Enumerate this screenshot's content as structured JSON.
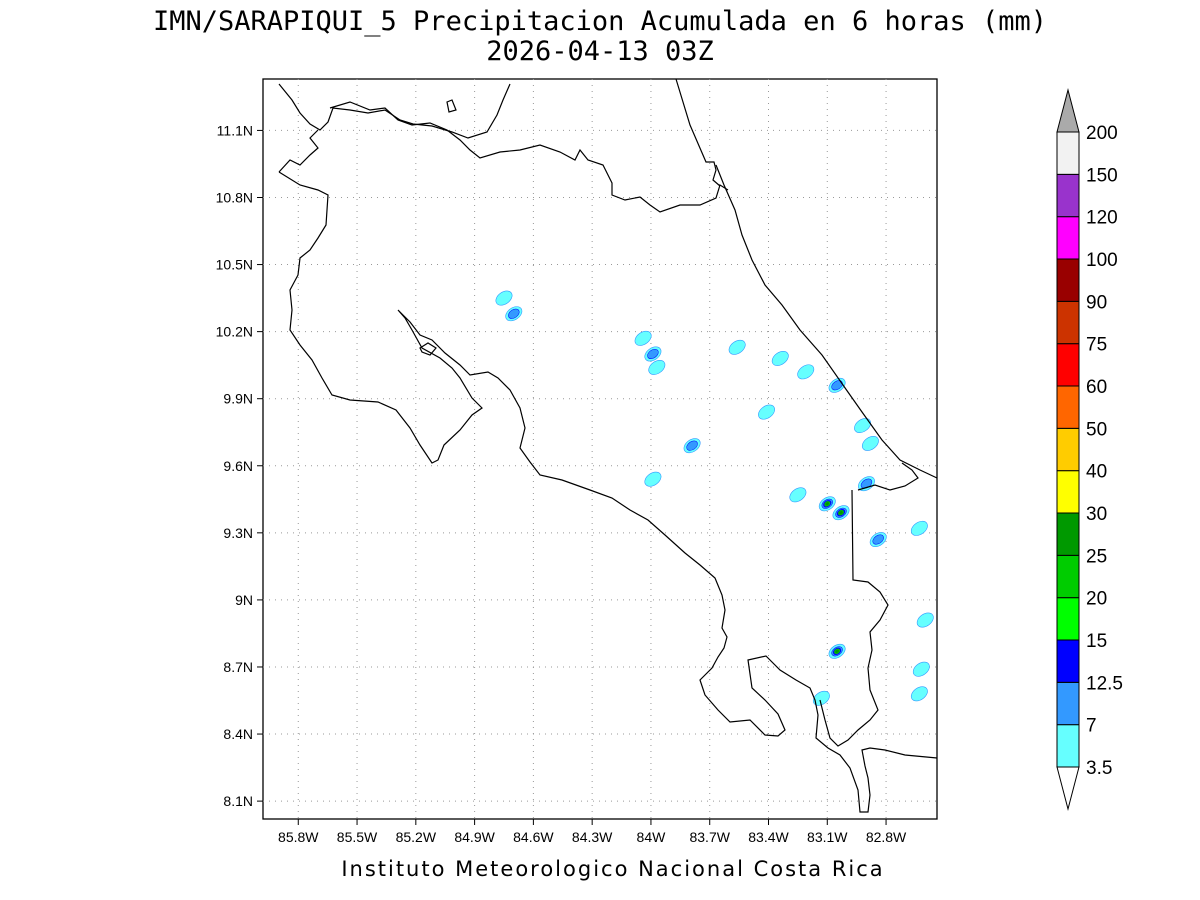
{
  "title_line1": "IMN/SARAPIQUI_5 Precipitacion Acumulada en 6 horas (mm)",
  "title_line2": "2026-04-13 03Z",
  "footer": "Instituto Meteorologico Nacional Costa Rica",
  "map": {
    "lon_range": [
      -85.98,
      -82.54
    ],
    "lat_range": [
      8.02,
      11.33
    ],
    "lon_ticks": [
      {
        "value": -85.8,
        "label": "85.8W"
      },
      {
        "value": -85.5,
        "label": "85.5W"
      },
      {
        "value": -85.2,
        "label": "85.2W"
      },
      {
        "value": -84.9,
        "label": "84.9W"
      },
      {
        "value": -84.6,
        "label": "84.6W"
      },
      {
        "value": -84.3,
        "label": "84.3W"
      },
      {
        "value": -84.0,
        "label": "84W"
      },
      {
        "value": -83.7,
        "label": "83.7W"
      },
      {
        "value": -83.4,
        "label": "83.4W"
      },
      {
        "value": -83.1,
        "label": "83.1W"
      },
      {
        "value": -82.8,
        "label": "82.8W"
      }
    ],
    "lat_ticks": [
      {
        "value": 11.1,
        "label": "11.1N"
      },
      {
        "value": 10.8,
        "label": "10.8N"
      },
      {
        "value": 10.5,
        "label": "10.5N"
      },
      {
        "value": 10.2,
        "label": "10.2N"
      },
      {
        "value": 9.9,
        "label": "9.9N"
      },
      {
        "value": 9.6,
        "label": "9.6N"
      },
      {
        "value": 9.3,
        "label": "9.3N"
      },
      {
        "value": 9.0,
        "label": "9N"
      },
      {
        "value": 8.7,
        "label": "8.7N"
      },
      {
        "value": 8.4,
        "label": "8.4N"
      },
      {
        "value": 8.1,
        "label": "8.1N"
      }
    ],
    "grid": true
  },
  "colorbar": {
    "levels": [
      "3.5",
      "7",
      "12.5",
      "15",
      "20",
      "25",
      "30",
      "40",
      "50",
      "60",
      "75",
      "90",
      "100",
      "120",
      "150",
      "200"
    ],
    "colors": [
      "#66ffff",
      "#3399ff",
      "#0000ff",
      "#00ff00",
      "#00cc00",
      "#009900",
      "#ffff00",
      "#ffcc00",
      "#ff6600",
      "#ff0000",
      "#cc3300",
      "#990000",
      "#ff00ff",
      "#9933cc",
      "#f2f2f2",
      "#aaaaaa"
    ]
  },
  "chart_data": {
    "type": "heatmap",
    "title": "IMN/SARAPIQUI_5 Precipitacion Acumulada en 6 horas (mm)",
    "subtitle": "2026-04-13 03Z",
    "xlabel": "",
    "ylabel": "",
    "xlim": [
      -85.98,
      -82.54
    ],
    "ylim": [
      8.02,
      11.33
    ],
    "precip_cells": [
      {
        "lon": -84.75,
        "lat": 10.35,
        "mm": 3.5
      },
      {
        "lon": -84.7,
        "lat": 10.28,
        "mm": 7
      },
      {
        "lon": -84.04,
        "lat": 10.17,
        "mm": 3.5
      },
      {
        "lon": -83.99,
        "lat": 10.1,
        "mm": 7
      },
      {
        "lon": -83.97,
        "lat": 10.04,
        "mm": 3.5
      },
      {
        "lon": -83.56,
        "lat": 10.13,
        "mm": 3.5
      },
      {
        "lon": -83.34,
        "lat": 10.08,
        "mm": 3.5
      },
      {
        "lon": -83.21,
        "lat": 10.02,
        "mm": 3.5
      },
      {
        "lon": -83.05,
        "lat": 9.96,
        "mm": 7
      },
      {
        "lon": -83.41,
        "lat": 9.84,
        "mm": 3.5
      },
      {
        "lon": -83.79,
        "lat": 9.69,
        "mm": 7
      },
      {
        "lon": -83.99,
        "lat": 9.54,
        "mm": 3.5
      },
      {
        "lon": -82.92,
        "lat": 9.78,
        "mm": 3.5
      },
      {
        "lon": -82.88,
        "lat": 9.7,
        "mm": 3.5
      },
      {
        "lon": -82.9,
        "lat": 9.52,
        "mm": 7
      },
      {
        "lon": -83.25,
        "lat": 9.47,
        "mm": 3.5
      },
      {
        "lon": -83.1,
        "lat": 9.43,
        "mm": 25
      },
      {
        "lon": -83.03,
        "lat": 9.39,
        "mm": 25
      },
      {
        "lon": -82.84,
        "lat": 9.27,
        "mm": 7
      },
      {
        "lon": -82.63,
        "lat": 9.32,
        "mm": 3.5
      },
      {
        "lon": -82.6,
        "lat": 8.91,
        "mm": 3.5
      },
      {
        "lon": -83.05,
        "lat": 8.77,
        "mm": 25
      },
      {
        "lon": -82.62,
        "lat": 8.69,
        "mm": 3.5
      },
      {
        "lon": -82.63,
        "lat": 8.58,
        "mm": 3.5
      },
      {
        "lon": -83.13,
        "lat": 8.56,
        "mm": 3.5
      }
    ]
  }
}
